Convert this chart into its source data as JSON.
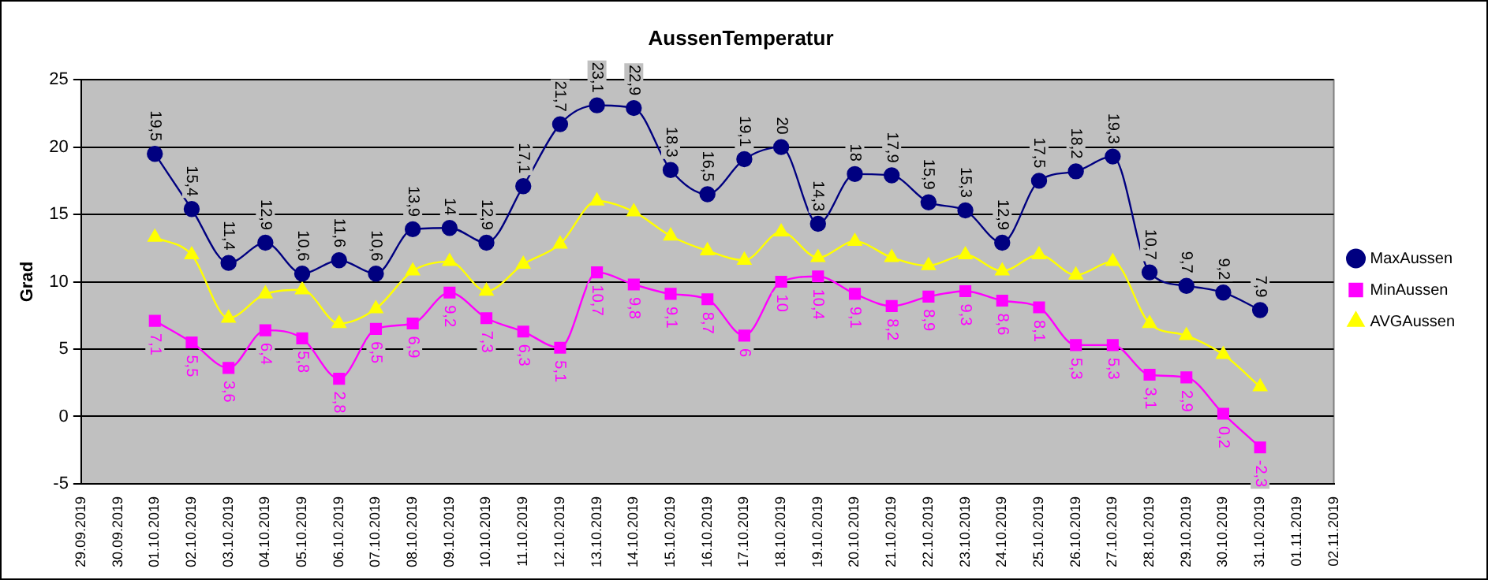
{
  "chart_data": {
    "type": "line",
    "title": "AussenTemperatur",
    "ylabel": "Grad",
    "categories": [
      "29.09.2019",
      "30.09.2019",
      "01.10.2019",
      "02.10.2019",
      "03.10.2019",
      "04.10.2019",
      "05.10.2019",
      "06.10.2019",
      "07.10.2019",
      "08.10.2019",
      "09.10.2019",
      "10.10.2019",
      "11.10.2019",
      "12.10.2019",
      "13.10.2019",
      "14.10.2019",
      "15.10.2019",
      "16.10.2019",
      "17.10.2019",
      "18.10.2019",
      "19.10.2019",
      "20.10.2019",
      "21.10.2019",
      "22.10.2019",
      "23.10.2019",
      "24.10.2019",
      "25.10.2019",
      "26.10.2019",
      "27.10.2019",
      "28.10.2019",
      "29.10.2019",
      "30.10.2019",
      "31.10.2019",
      "01.11.2019",
      "02.11.2019"
    ],
    "series": [
      {
        "name": "MaxAussen",
        "color": "#000080",
        "marker": "circle",
        "values": [
          null,
          null,
          19.5,
          15.4,
          11.4,
          12.9,
          10.6,
          11.6,
          10.6,
          13.9,
          14,
          12.9,
          17.1,
          21.7,
          23.1,
          22.9,
          18.3,
          16.5,
          19.1,
          20,
          14.3,
          18,
          17.9,
          15.9,
          15.3,
          12.9,
          17.5,
          18.2,
          19.3,
          10.7,
          9.7,
          9.2,
          7.9,
          null,
          null
        ],
        "value_labels": [
          null,
          null,
          "19,5",
          "15,4",
          "11,4",
          "12,9",
          "10,6",
          "11,6",
          "10,6",
          "13,9",
          "14",
          "12,9",
          "17,1",
          "21,7",
          "23,1",
          "22,9",
          "18,3",
          "16,5",
          "19,1",
          "20",
          "14,3",
          "18",
          "17,9",
          "15,9",
          "15,3",
          "12,9",
          "17,5",
          "18,2",
          "19,3",
          "10,7",
          "9,7",
          "9,2",
          "7,9",
          null,
          null
        ]
      },
      {
        "name": "MinAussen",
        "color": "#ff00ff",
        "marker": "square",
        "values": [
          null,
          null,
          7.1,
          5.5,
          3.6,
          6.4,
          5.8,
          2.8,
          6.5,
          6.9,
          9.2,
          7.3,
          6.3,
          5.1,
          10.7,
          9.8,
          9.1,
          8.7,
          6,
          10,
          10.4,
          9.1,
          8.2,
          8.9,
          9.3,
          8.6,
          8.1,
          5.3,
          5.3,
          3.1,
          2.9,
          0.2,
          -2.3,
          null,
          null
        ],
        "value_labels": [
          null,
          null,
          "7,1",
          "5,5",
          "3,6",
          "6,4",
          "5,8",
          "2,8",
          "6,5",
          "6,9",
          "9,2",
          "7,3",
          "6,3",
          "5,1",
          "10,7",
          "9,8",
          "9,1",
          "8,7",
          "6",
          "10",
          "10,4",
          "9,1",
          "8,2",
          "8,9",
          "9,3",
          "8,6",
          "8,1",
          "5,3",
          "5,3",
          "3,1",
          "2,9",
          "0,2",
          "-2,3",
          null,
          null
        ]
      },
      {
        "name": "AVGAussen",
        "color": "#ffff00",
        "marker": "triangle",
        "values": [
          null,
          null,
          13.3,
          12.0,
          7.3,
          9.1,
          9.4,
          6.9,
          8.0,
          10.8,
          11.5,
          9.3,
          11.3,
          12.8,
          16.0,
          15.2,
          13.4,
          12.3,
          11.6,
          13.7,
          11.8,
          13.0,
          11.8,
          11.2,
          12.0,
          10.8,
          12.0,
          10.5,
          11.5,
          6.9,
          6.0,
          4.6,
          2.2,
          null,
          null
        ]
      }
    ],
    "ylim": [
      -5,
      25
    ],
    "yticks": [
      -5,
      0,
      5,
      10,
      15,
      20,
      25
    ],
    "grid": "y",
    "legend": "right"
  }
}
